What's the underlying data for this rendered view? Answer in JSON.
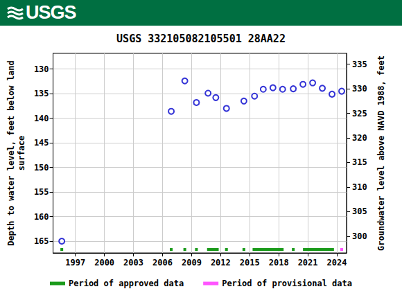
{
  "header": {
    "logo": "USGS"
  },
  "chart_data": {
    "type": "scatter",
    "title": "USGS 332105082105501 28AA22",
    "x_label": null,
    "y_label": "Depth to water level, feet below land\nsurface",
    "y2_label": "Groundwater level above NAVD 1988, feet",
    "xlim": [
      1994.7,
      2025.0
    ],
    "xticks": [
      1997,
      2000,
      2003,
      2006,
      2009,
      2012,
      2015,
      2018,
      2021,
      2024
    ],
    "ylim": [
      167.4,
      126.8
    ],
    "yticks": [
      130,
      135,
      140,
      145,
      150,
      155,
      160,
      165
    ],
    "y2lim": [
      296.6,
      337.2
    ],
    "y2ticks": [
      300,
      305,
      310,
      315,
      320,
      325,
      330,
      335
    ],
    "grid": true,
    "series": [
      {
        "color": "#0000cc",
        "marker": "open_circle",
        "x": [
          1995.6,
          2006.9,
          2008.3,
          2009.5,
          2010.7,
          2011.5,
          2012.6,
          2014.4,
          2015.5,
          2016.4,
          2017.4,
          2018.4,
          2019.5,
          2020.5,
          2021.5,
          2022.5,
          2023.5,
          2024.5
        ],
        "values": [
          165.0,
          138.6,
          132.4,
          136.8,
          134.9,
          135.8,
          138.0,
          136.5,
          135.5,
          134.1,
          133.8,
          134.1,
          134.0,
          133.1,
          132.8,
          133.9,
          135.1,
          134.5
        ]
      }
    ],
    "periods": [
      {
        "name": "Period of approved data",
        "color": "#1a9a1a",
        "ranges": [
          [
            1995.5,
            1995.7
          ],
          [
            2006.8,
            2007.0
          ],
          [
            2008.2,
            2008.4
          ],
          [
            2009.4,
            2009.6
          ],
          [
            2010.6,
            2011.8
          ],
          [
            2012.5,
            2012.7
          ],
          [
            2014.3,
            2014.5
          ],
          [
            2015.3,
            2018.5
          ],
          [
            2019.4,
            2019.6
          ],
          [
            2020.5,
            2023.7
          ]
        ]
      },
      {
        "name": "Period of provisional data",
        "color": "#ff55ff",
        "ranges": [
          [
            2024.4,
            2024.6
          ]
        ]
      }
    ],
    "legend": "bottom"
  }
}
